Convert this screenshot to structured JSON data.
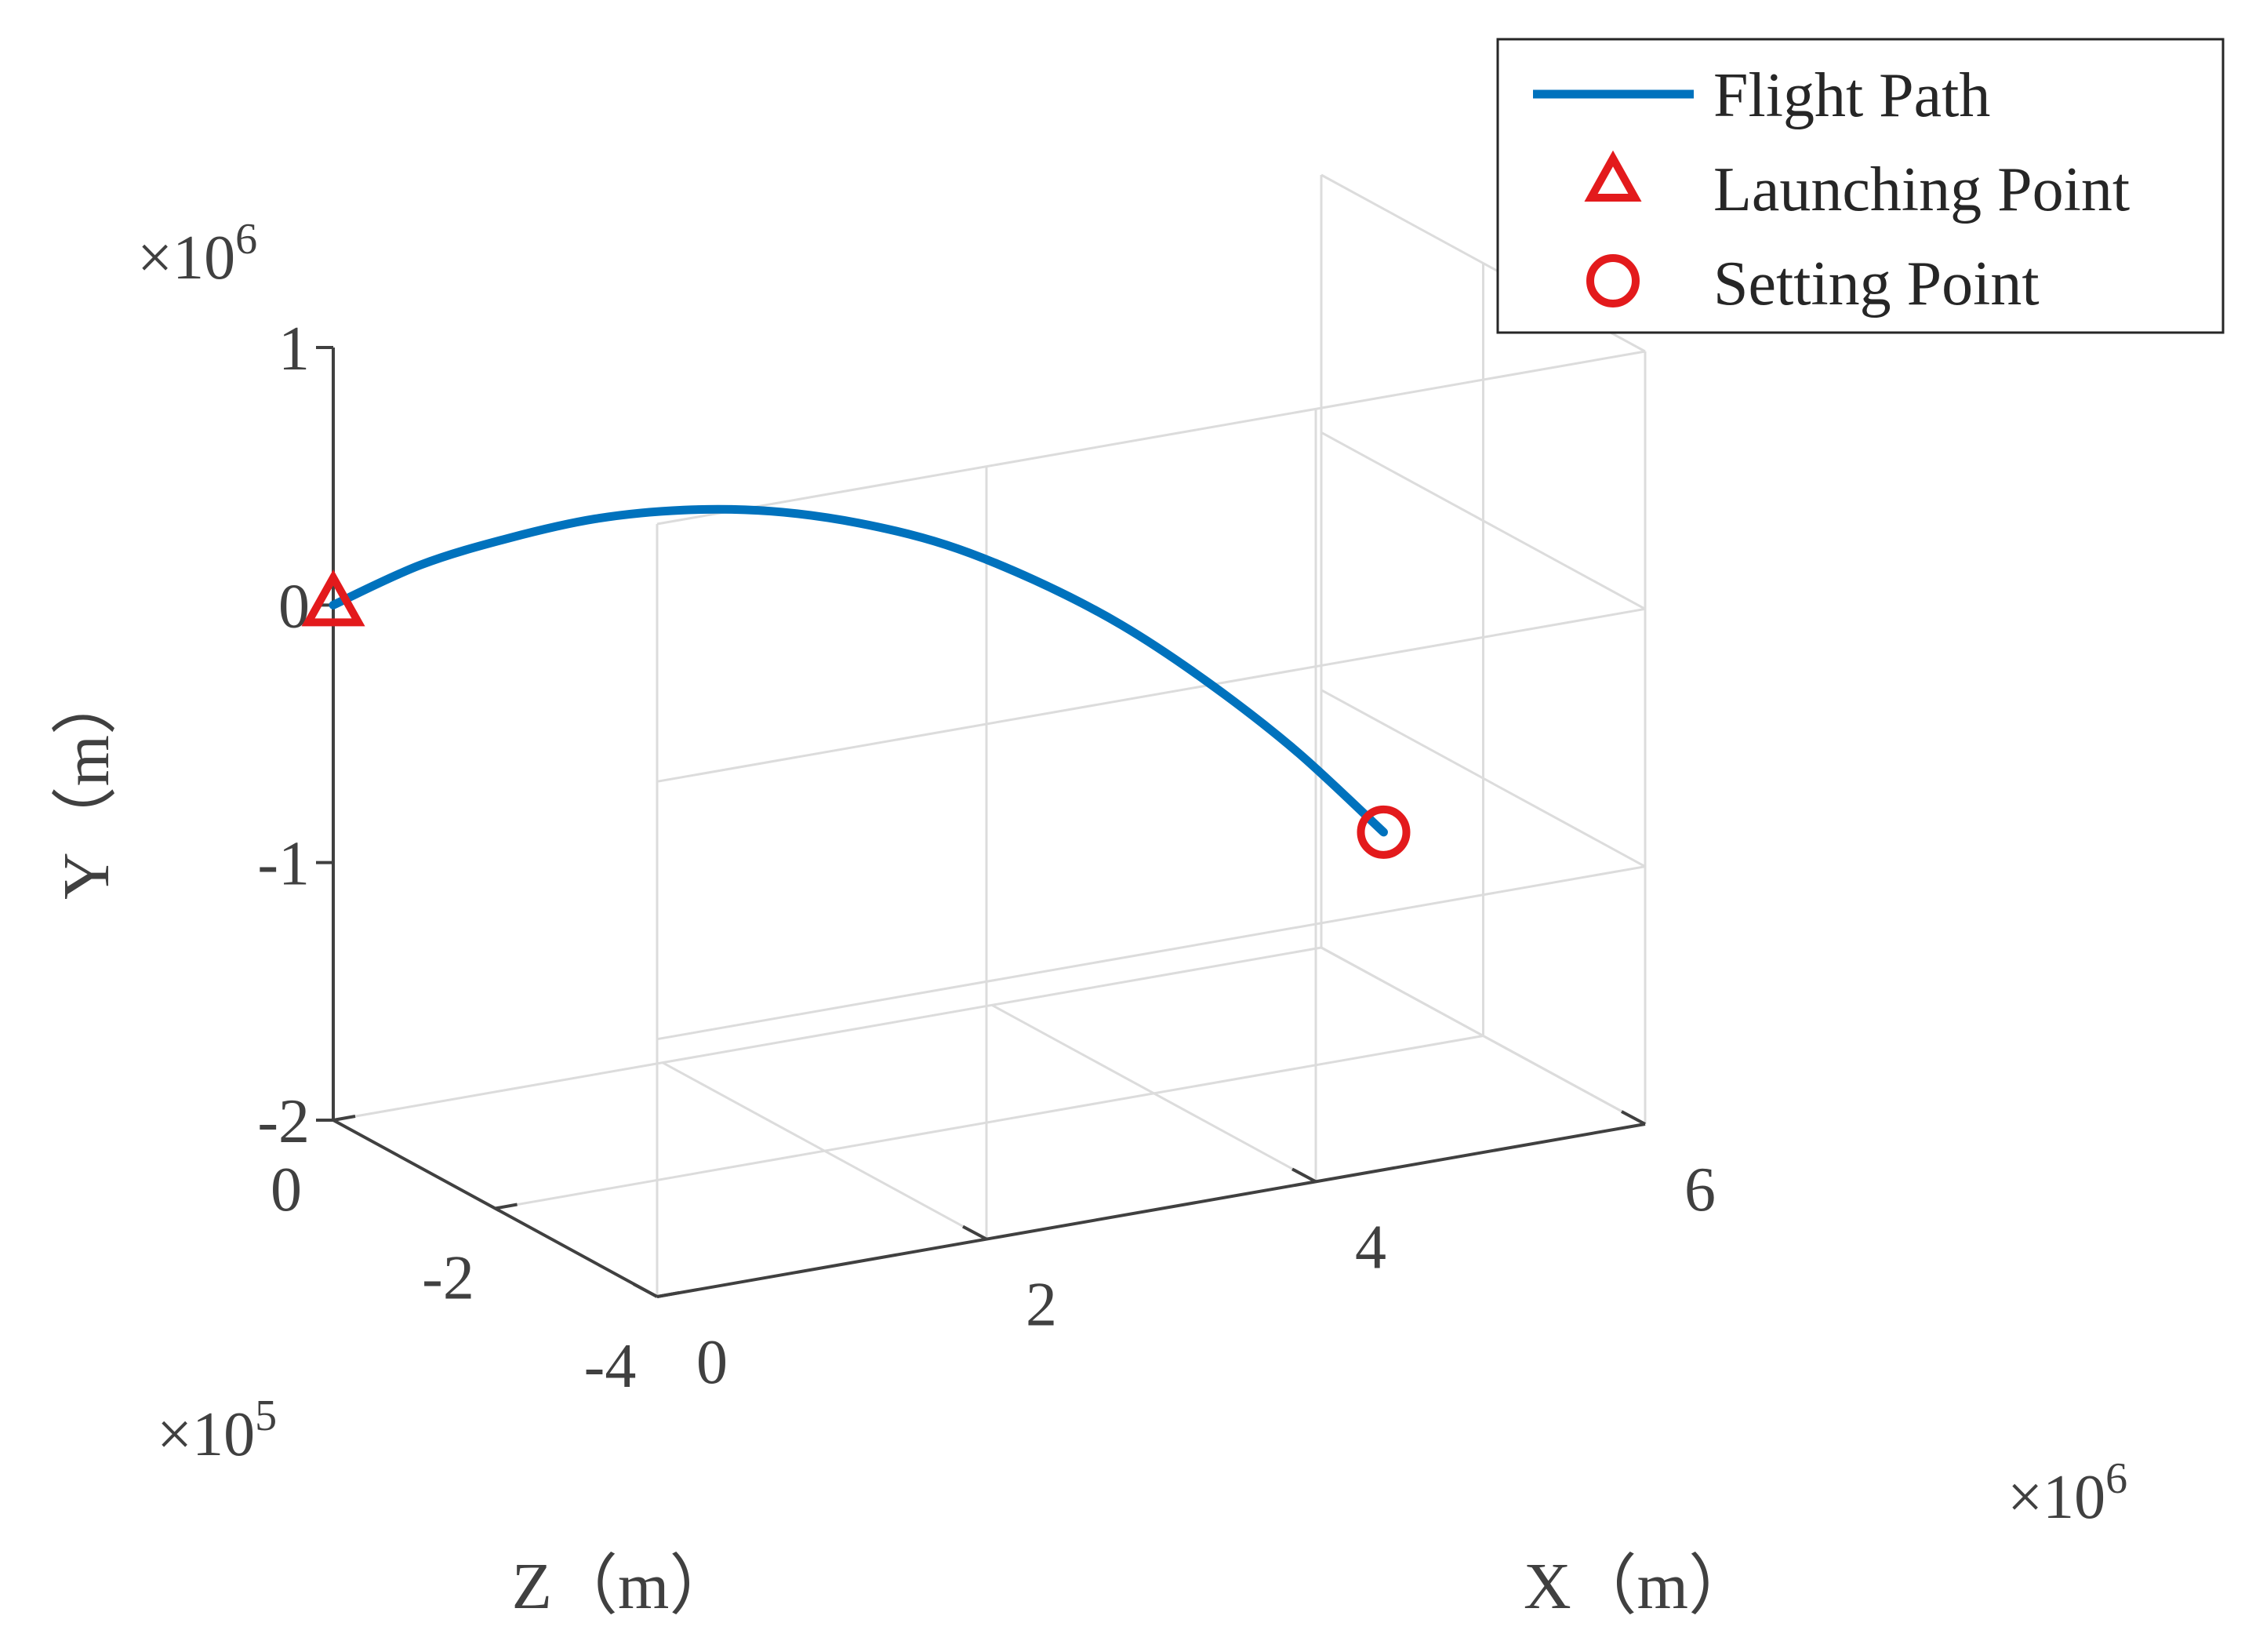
{
  "chart_data": {
    "type": "line",
    "projection": "3d",
    "series": [
      {
        "name": "Flight Path",
        "color": "#0072BD",
        "x": [
          0,
          500000.0,
          1000000.0,
          1500000.0,
          2000000.0,
          2500000.0,
          3000000.0,
          3500000.0,
          4000000.0,
          4500000.0,
          5000000.0,
          5500000.0,
          6000000.0
        ],
        "y": [
          0,
          110000.0,
          170000.0,
          200000.0,
          190000.0,
          140000.0,
          50000.0,
          -80000.0,
          -260000.0,
          -480000.0,
          -750000.0,
          -1060000.0,
          -1420000.0
        ],
        "z": [
          0,
          -6000.0,
          -13000.0,
          -19000.0,
          -26000.0,
          -32000.0,
          -39000.0,
          -45000.0,
          -52000.0,
          -58000.0,
          -64000.0,
          -71000.0,
          -77000.0
        ]
      }
    ],
    "markers": [
      {
        "name": "Launching Point",
        "shape": "triangle",
        "color": "#E31A1C",
        "x": 0,
        "y": 0,
        "z": 0
      },
      {
        "name": "Setting Point",
        "shape": "circle",
        "color": "#E31A1C",
        "x": 6000000.0,
        "y": -1420000.0,
        "z": -77000.0
      }
    ],
    "xlabel": "X（m）",
    "ylabel": "Y（m）",
    "zlabel": "Z（m）",
    "xlim": [
      0,
      6000000
    ],
    "ylim": [
      -2000000,
      1000000
    ],
    "zlim": [
      -400000,
      0
    ],
    "x_ticks": [
      0,
      2,
      4,
      6
    ],
    "x_tick_labels": [
      "0",
      "2",
      "4",
      "6"
    ],
    "y_ticks": [
      -2,
      -1,
      0,
      1
    ],
    "y_tick_labels": [
      "-2",
      "-1",
      "0",
      "1"
    ],
    "z_ticks": [
      0,
      -2,
      -4
    ],
    "z_tick_labels": [
      "0",
      "-2",
      "-4"
    ],
    "x_exponent_label": "×10",
    "x_exponent": "6",
    "y_exponent_label": "×10",
    "y_exponent": "6",
    "z_exponent_label": "×10",
    "z_exponent": "5",
    "legend_position": "top-right",
    "grid": true
  }
}
